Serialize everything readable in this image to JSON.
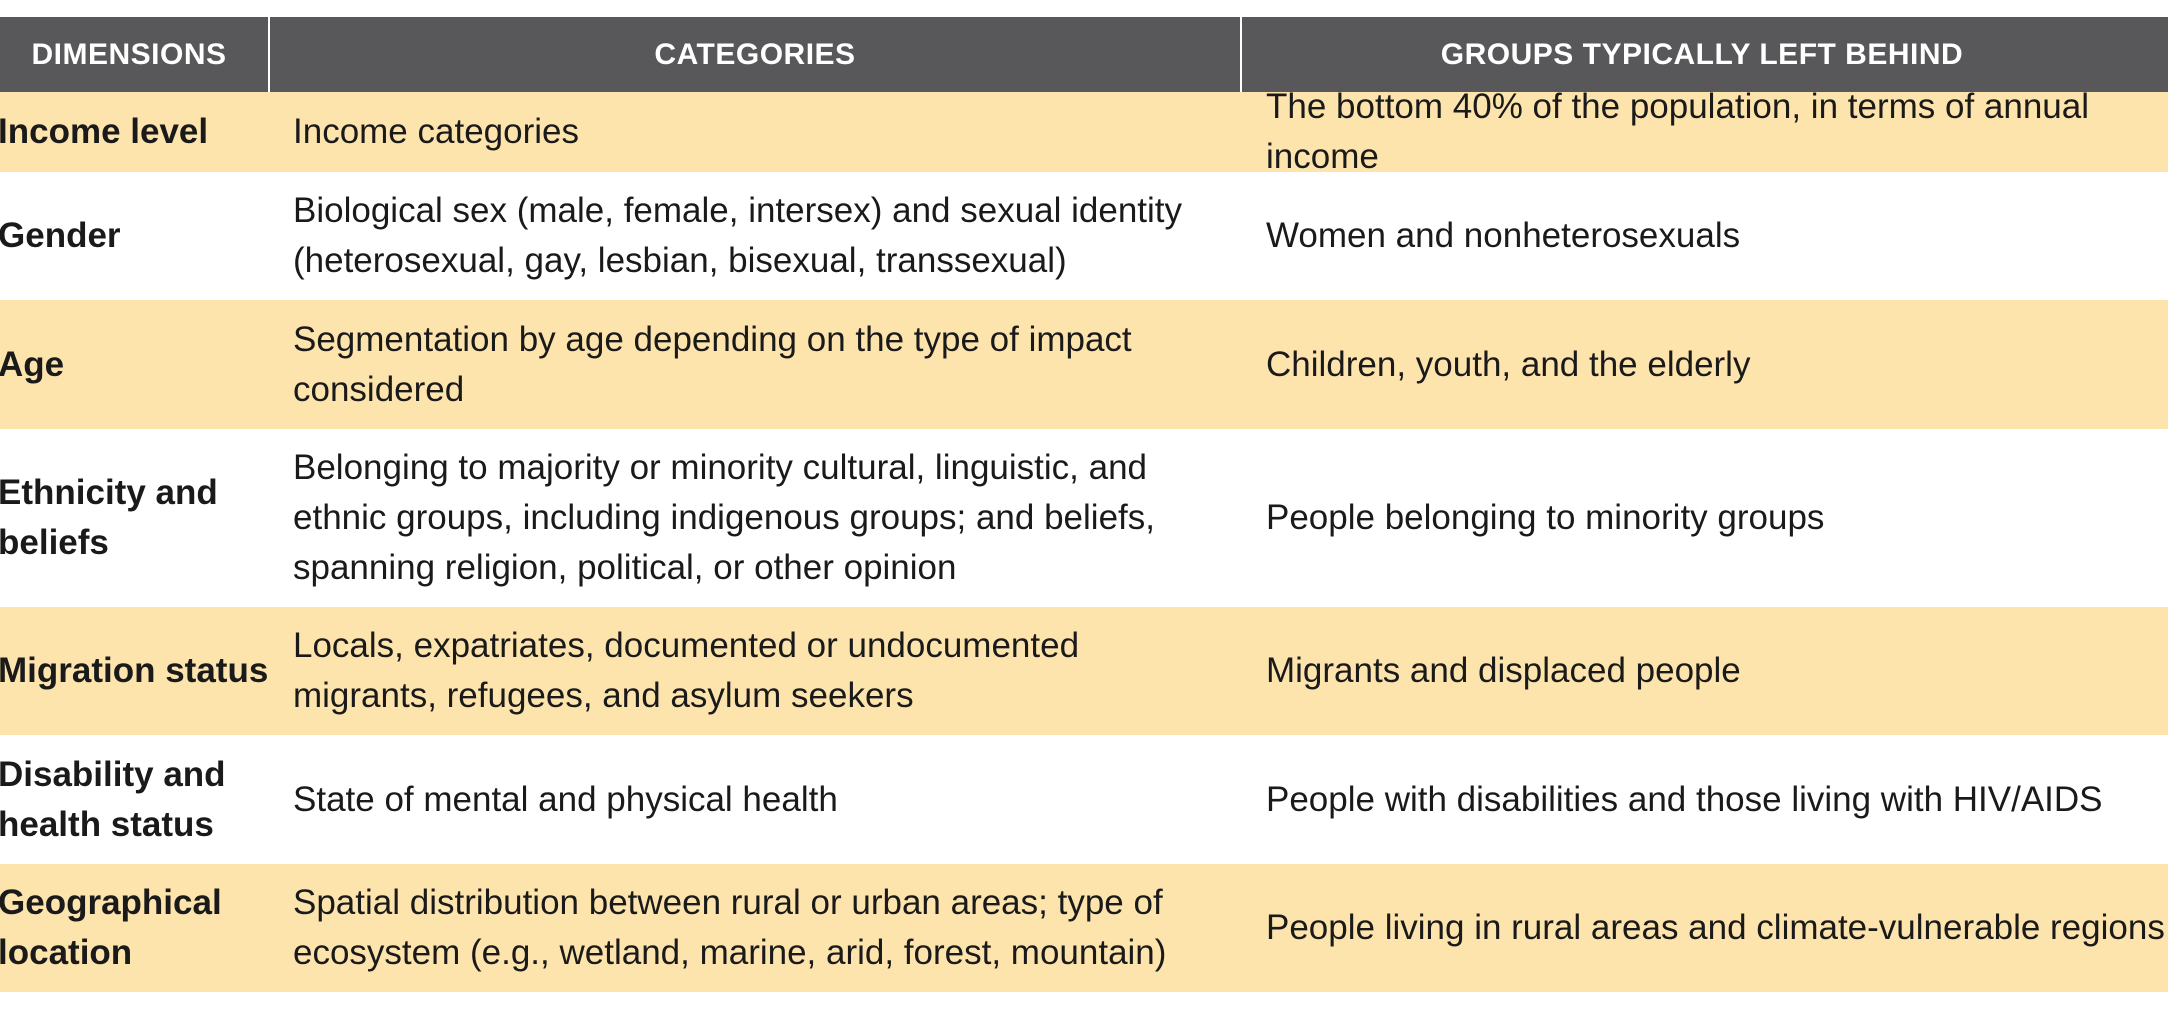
{
  "header": {
    "dimensions": "DIMENSIONS",
    "categories": "CATEGORIES",
    "groups": "GROUPS TYPICALLY LEFT BEHIND"
  },
  "rows": [
    {
      "dimension": "Income level",
      "category": "Income categories",
      "group": "The bottom 40% of the population, in terms of annual income"
    },
    {
      "dimension": "Gender",
      "category": "Biological sex (male, female, intersex) and sexual identity (heterosexual, gay, lesbian, bisexual, transsexual)",
      "group": "Women and nonheterosexuals"
    },
    {
      "dimension": "Age",
      "category": "Segmentation by age depending on the type of impact considered",
      "group": "Children, youth, and the elderly"
    },
    {
      "dimension": "Ethnicity and beliefs",
      "category": "Belonging to majority or minority cultural, linguistic, and ethnic groups, including indigenous groups; and beliefs, spanning religion, political, or other opinion",
      "group": "People belonging to minority groups"
    },
    {
      "dimension": "Migration status",
      "category": "Locals, expatriates, documented or undocumented migrants, refugees, and asylum seekers",
      "group": "Migrants and displaced people"
    },
    {
      "dimension": "Disability and health status",
      "category": "State of mental and physical health",
      "group": "People with disabilities and those living with HIV/AIDS"
    },
    {
      "dimension": "Geographical location",
      "category": "Spatial distribution between rural or urban areas; type of ecosystem (e.g., wetland, marine, arid, forest, mountain)",
      "group": "People living in rural areas and climate-vulnerable regions"
    }
  ]
}
